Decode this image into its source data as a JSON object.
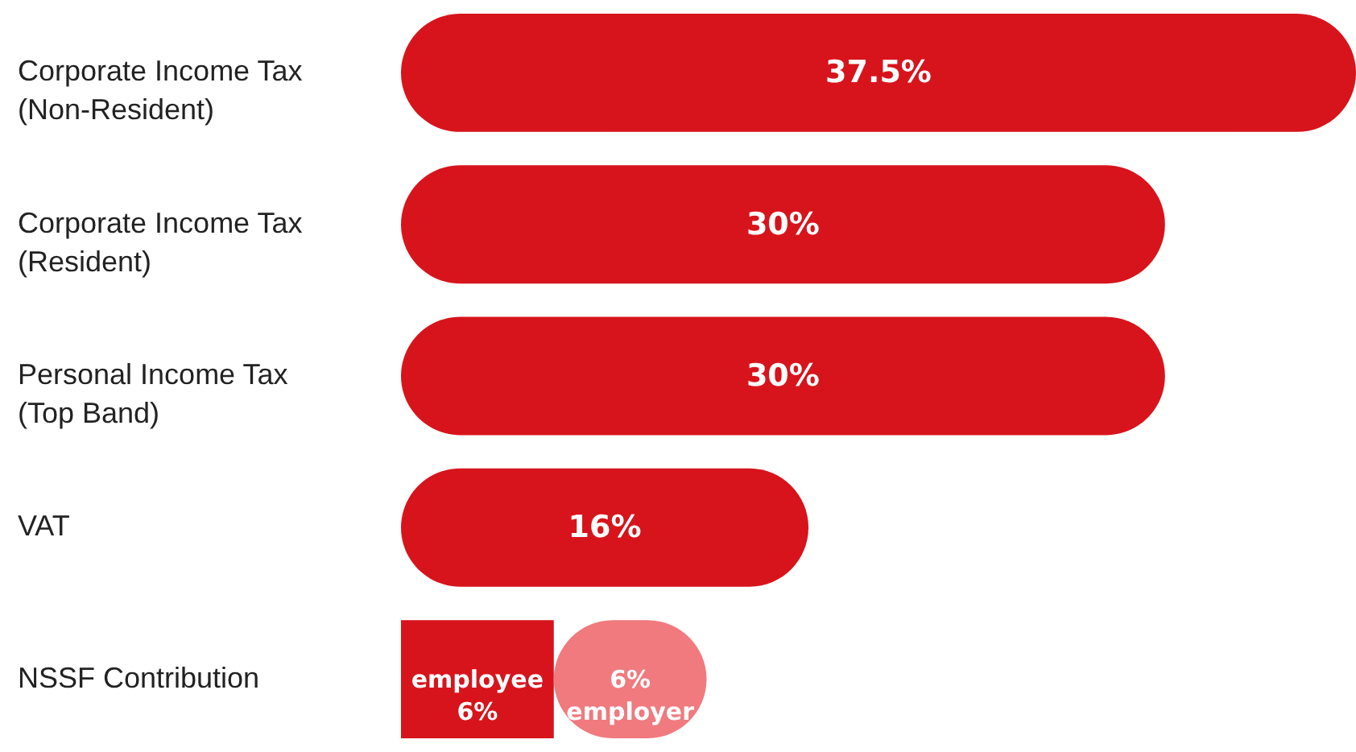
{
  "chart_data": {
    "type": "bar",
    "orientation": "horizontal",
    "stacked": true,
    "categories": [
      "Corporate Income Tax (Non-Resident)",
      "Corporate Income Tax (Resident)",
      "Personal Income Tax (Top Band)",
      "VAT",
      "NSSF Contribution"
    ],
    "series": [
      {
        "color": "#d7141c",
        "values": [
          37.5,
          30,
          30,
          16,
          6
        ],
        "value_labels": [
          "37.5%",
          "30%",
          "30%",
          "16%",
          "employee 6%"
        ]
      },
      {
        "color": "#f07a7e",
        "values": [
          null,
          null,
          null,
          null,
          6
        ],
        "value_labels": [
          null,
          null,
          null,
          null,
          "6% employer"
        ]
      }
    ]
  }
}
